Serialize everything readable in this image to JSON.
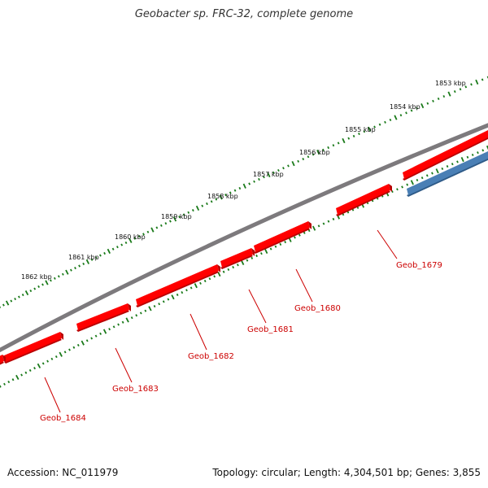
{
  "header": {
    "title": "Geobacter sp. FRC-32, complete genome"
  },
  "footer": {
    "accession": "Accession: NC_011979",
    "summary": "Topology: circular; Length: 4,304,501 bp; Genes: 3,855"
  },
  "colors": {
    "backbone": "#7d7a7d",
    "gene_forward": "#ff0000",
    "gene_reverse": "#4a7fb5",
    "ticks": "#1a7a1a",
    "gene_label": "#cc0000"
  },
  "kbp_labels": [
    "1853 kbp",
    "1854 kbp",
    "1855 kbp",
    "1856 kbp",
    "1857 kbp",
    "1858 kbp",
    "1859 kbp",
    "1860 kbp",
    "1861 kbp",
    "1862 kbp"
  ],
  "genes": [
    {
      "label": "Geob_1679"
    },
    {
      "label": "Geob_1680"
    },
    {
      "label": "Geob_1681"
    },
    {
      "label": "Geob_1682"
    },
    {
      "label": "Geob_1683"
    },
    {
      "label": "Geob_1684"
    }
  ]
}
